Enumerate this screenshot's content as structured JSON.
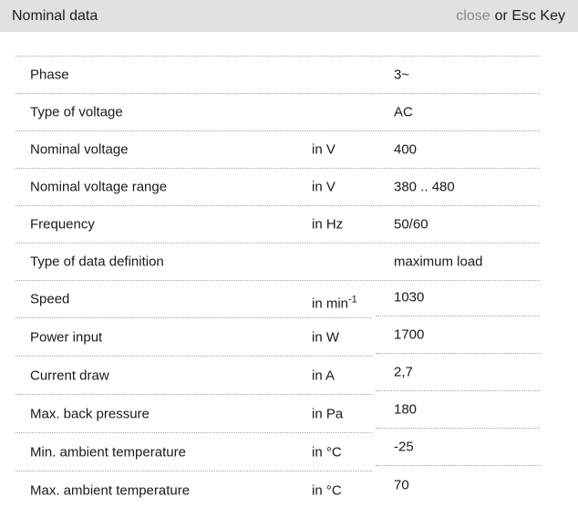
{
  "header": {
    "title": "Nominal data",
    "close_label": "close",
    "close_suffix": "or Esc Key"
  },
  "colors": {
    "header_bg": "#e1e1e1",
    "close_link": "#8a8a8a",
    "body_text": "#1a1a1a",
    "divider": "#a4a4a4"
  },
  "table": {
    "rows": [
      {
        "label": "Phase",
        "unit": "",
        "unit_sup": "",
        "value": "3~"
      },
      {
        "label": "Type of voltage",
        "unit": "",
        "unit_sup": "",
        "value": "AC"
      },
      {
        "label": "Nominal voltage",
        "unit": "in V",
        "unit_sup": "",
        "value": "400"
      },
      {
        "label": "Nominal voltage range",
        "unit": "in V",
        "unit_sup": "",
        "value": "380 .. 480"
      },
      {
        "label": "Frequency",
        "unit": "in Hz",
        "unit_sup": "",
        "value": "50/60"
      },
      {
        "label": "Type of data definition",
        "unit": "",
        "unit_sup": "",
        "value": "maximum load"
      },
      {
        "label": "Speed",
        "unit": "in min",
        "unit_sup": "-1",
        "value": "1030"
      },
      {
        "label": "Power input",
        "unit": "in W",
        "unit_sup": "",
        "value": "1700"
      },
      {
        "label": "Current draw",
        "unit": "in A",
        "unit_sup": "",
        "value": "2,7"
      },
      {
        "label": "Max. back pressure",
        "unit": "in Pa",
        "unit_sup": "",
        "value": "180"
      },
      {
        "label": "Min. ambient temperature",
        "unit": "in °C",
        "unit_sup": "",
        "value": "-25"
      },
      {
        "label": "Max. ambient temperature",
        "unit": "in °C",
        "unit_sup": "",
        "value": "70"
      }
    ]
  }
}
